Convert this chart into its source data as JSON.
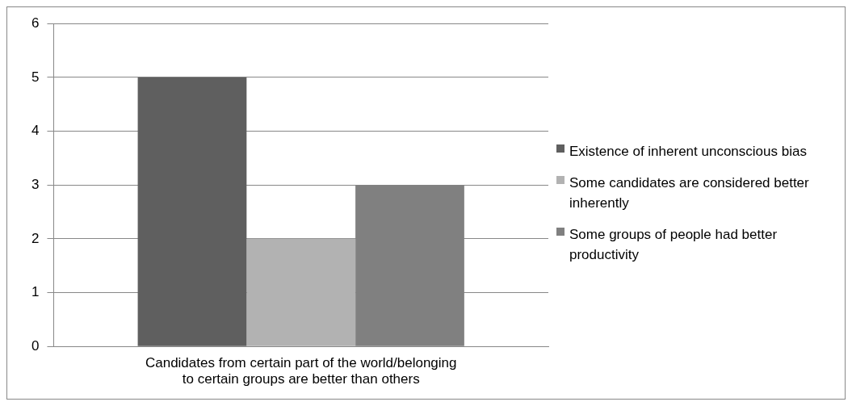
{
  "chart_data": {
    "type": "bar",
    "categories": [
      "Candidates from certain part of the world/belonging to certain groups are better than others"
    ],
    "series": [
      {
        "name": "Existence of inherent unconscious bias",
        "color": "#5f5f5f",
        "values": [
          5
        ]
      },
      {
        "name": "Some candidates are considered better inherently",
        "color": "#b2b2b2",
        "values": [
          2
        ]
      },
      {
        "name": "Some groups of people had better productivity",
        "color": "#808080",
        "values": [
          3
        ]
      }
    ],
    "ylim": [
      0,
      6
    ],
    "yticks": [
      0,
      1,
      2,
      3,
      4,
      5,
      6
    ],
    "grid": "y",
    "legend": "right"
  }
}
